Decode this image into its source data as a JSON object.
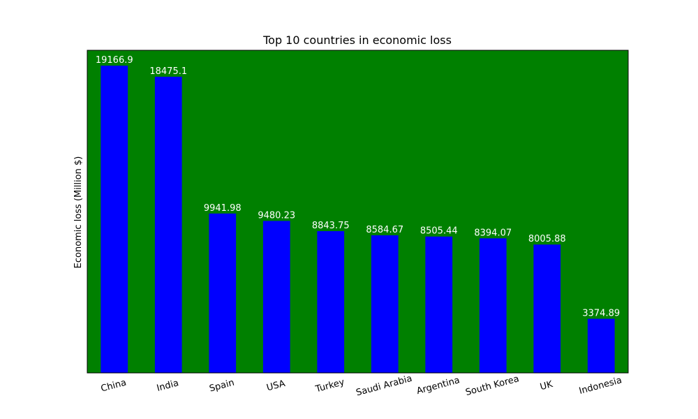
{
  "chart_data": {
    "type": "bar",
    "title": "Top 10 countries in economic loss",
    "xlabel": "",
    "ylabel": "Economic loss (Million $)",
    "categories": [
      "China",
      "India",
      "Spain",
      "USA",
      "Turkey",
      "Saudi Arabia",
      "Argentina",
      "South Korea",
      "UK",
      "Indonesia"
    ],
    "values": [
      19166.9,
      18475.1,
      9941.98,
      9480.23,
      8843.75,
      8584.67,
      8505.44,
      8394.07,
      8005.88,
      3374.89
    ],
    "data_labels": [
      "19166.9",
      "18475.1",
      "9941.98",
      "9480.23",
      "8843.75",
      "8584.67",
      "8505.44",
      "8394.07",
      "8005.88",
      "3374.89"
    ],
    "ylim": [
      0,
      20125
    ],
    "y_ticks_shown": false,
    "x_tick_rotation_deg": 15,
    "grid": false,
    "legend": "none",
    "colors": {
      "plot_background": "#008000",
      "bar": "#0000ff",
      "data_label_text": "#ffffff",
      "frame": "#000000"
    }
  }
}
